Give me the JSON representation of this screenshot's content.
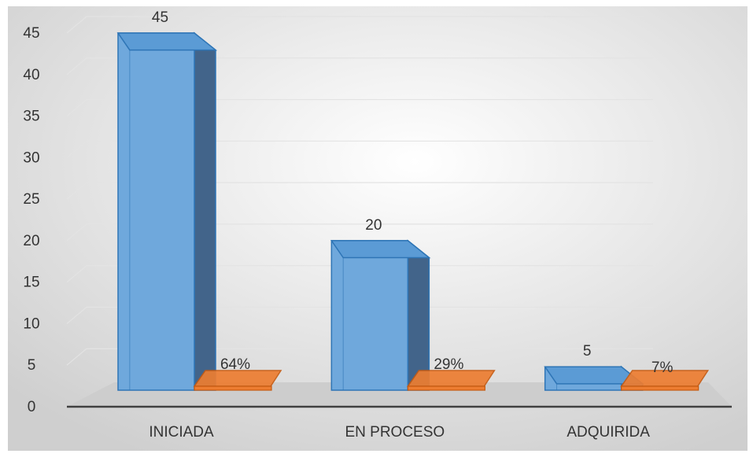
{
  "chart_data": {
    "type": "bar",
    "categories": [
      "INICIADA",
      "EN PROCESO",
      "ADQUIRIDA"
    ],
    "series": [
      {
        "values": [
          45,
          20,
          5
        ],
        "labels": [
          "45",
          "20",
          "5"
        ],
        "color": "#5b9bd5"
      },
      {
        "values": [
          0.64,
          0.29,
          0.07
        ],
        "labels": [
          "64%",
          "29%",
          "7%"
        ],
        "color": "#ed7d31"
      }
    ],
    "yticks": [
      0,
      5,
      10,
      15,
      20,
      25,
      30,
      35,
      40,
      45
    ],
    "ylim": [
      0,
      45
    ],
    "grid": true,
    "style": "3d-column"
  }
}
